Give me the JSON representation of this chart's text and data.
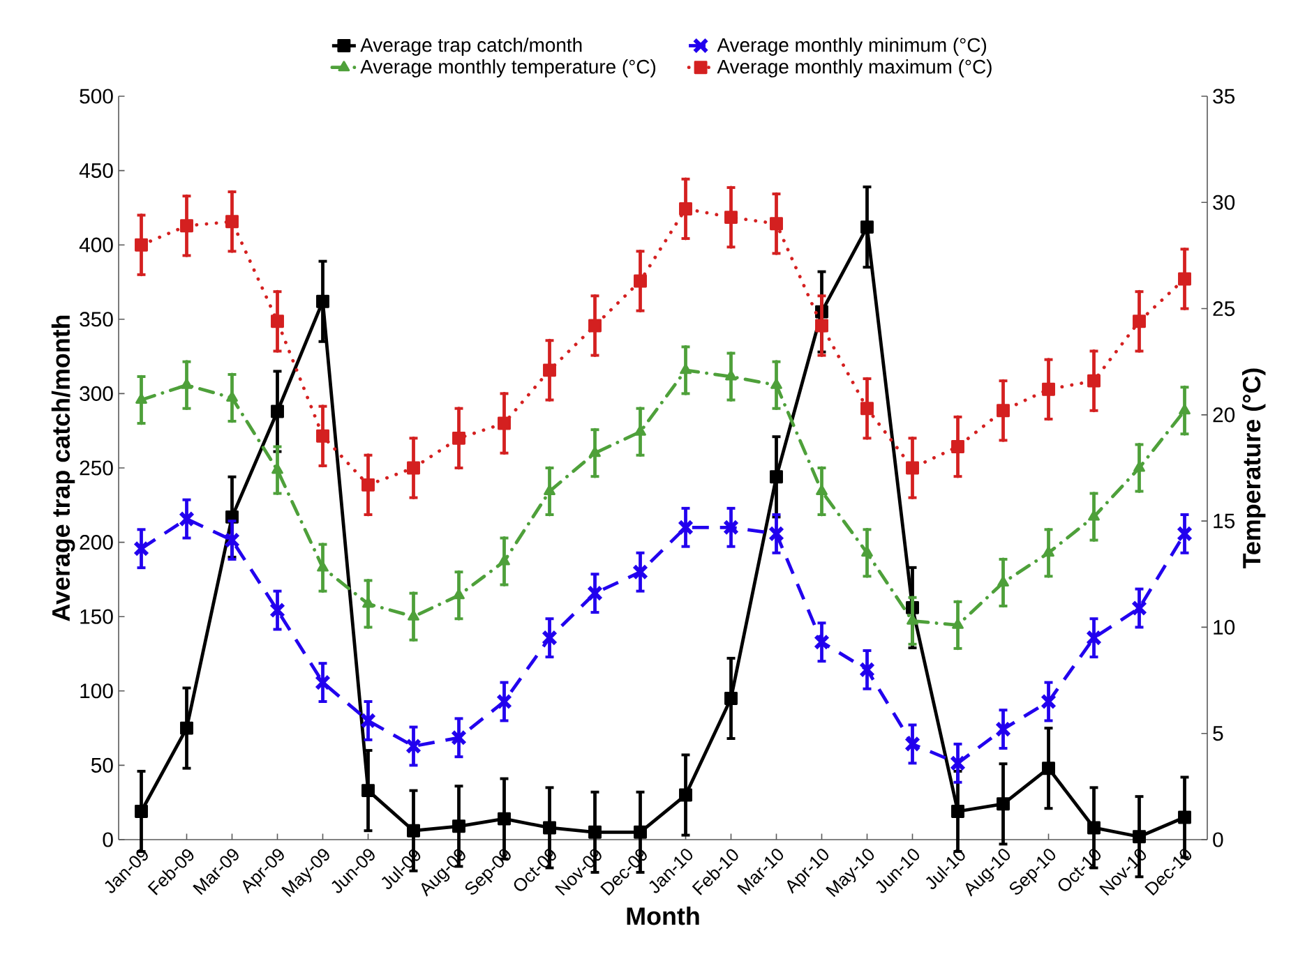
{
  "chart_data": {
    "type": "line",
    "categories": [
      "Jan-09",
      "Feb-09",
      "Mar-09",
      "Apr-09",
      "May-09",
      "Jun-09",
      "Jul-09",
      "Aug-09",
      "Sep-09",
      "Oct-09",
      "Nov-09",
      "Dec-09",
      "Jan-10",
      "Feb-10",
      "Mar-10",
      "Apr-10",
      "May-10",
      "Jun-10",
      "Jul-10",
      "Aug-10",
      "Sep-10",
      "Oct-10",
      "Nov-10",
      "Dec-10"
    ],
    "xlabel": "Month",
    "ylabel": "Average trap catch/month",
    "y2label": "Temperature (°C)",
    "ylim": [
      0,
      500
    ],
    "yticks": [
      0,
      50,
      100,
      150,
      200,
      250,
      300,
      350,
      400,
      450,
      500
    ],
    "y2lim": [
      0,
      35
    ],
    "y2ticks": [
      0,
      5,
      10,
      15,
      20,
      25,
      30,
      35
    ],
    "legend": "top",
    "series": [
      {
        "name": "Average trap catch/month",
        "color": "#000000",
        "marker": "square",
        "line_style": "solid",
        "values": [
          19,
          75,
          217,
          288,
          362,
          33,
          6,
          9,
          14,
          8,
          5,
          5,
          30,
          95,
          244,
          355,
          412,
          156,
          19,
          24,
          48,
          8,
          2,
          15
        ],
        "errors": [
          27,
          27,
          27,
          27,
          27,
          27,
          27,
          27,
          27,
          27,
          27,
          27,
          27,
          27,
          27,
          27,
          27,
          27,
          27,
          27,
          27,
          27,
          27,
          27
        ]
      },
      {
        "name": "Average monthly minimum (°C)",
        "color": "#2200ee",
        "marker": "cross",
        "line_style": "dashed",
        "axis": "y2",
        "values": [
          13.7,
          15.1,
          14.1,
          10.8,
          7.4,
          5.6,
          4.4,
          4.8,
          6.5,
          9.5,
          11.6,
          12.6,
          14.7,
          14.7,
          14.4,
          9.3,
          8.0,
          4.5,
          3.6,
          5.2,
          6.5,
          9.5,
          10.9,
          14.4
        ],
        "errors": [
          0.9,
          0.9,
          0.9,
          0.9,
          0.9,
          0.9,
          0.9,
          0.9,
          0.9,
          0.9,
          0.9,
          0.9,
          0.9,
          0.9,
          0.9,
          0.9,
          0.9,
          0.9,
          0.9,
          0.9,
          0.9,
          0.9,
          0.9,
          0.9
        ]
      },
      {
        "name": "Average monthly temperature (°C)",
        "color": "#4ea03a",
        "marker": "triangle",
        "line_style": "dashdot",
        "axis": "y2",
        "values": [
          20.7,
          21.4,
          20.8,
          17.4,
          12.8,
          11.1,
          10.5,
          11.5,
          13.1,
          16.4,
          18.2,
          19.2,
          22.1,
          21.8,
          21.4,
          16.4,
          13.5,
          10.3,
          10.1,
          12.1,
          13.5,
          15.2,
          17.5,
          20.2
        ],
        "errors": [
          1.1,
          1.1,
          1.1,
          1.1,
          1.1,
          1.1,
          1.1,
          1.1,
          1.1,
          1.1,
          1.1,
          1.1,
          1.1,
          1.1,
          1.1,
          1.1,
          1.1,
          1.1,
          1.1,
          1.1,
          1.1,
          1.1,
          1.1,
          1.1
        ]
      },
      {
        "name": "Average monthly maximum (°C)",
        "color": "#d42020",
        "marker": "square",
        "line_style": "dotted",
        "axis": "y2",
        "values": [
          28.0,
          28.9,
          29.1,
          24.4,
          19.0,
          16.7,
          17.5,
          18.9,
          19.6,
          22.1,
          24.2,
          26.3,
          29.7,
          29.3,
          29.0,
          24.2,
          20.3,
          17.5,
          18.5,
          20.2,
          21.2,
          21.6,
          24.4,
          26.4
        ],
        "errors": [
          1.4,
          1.4,
          1.4,
          1.4,
          1.4,
          1.4,
          1.4,
          1.4,
          1.4,
          1.4,
          1.4,
          1.4,
          1.4,
          1.4,
          1.4,
          1.4,
          1.4,
          1.4,
          1.4,
          1.4,
          1.4,
          1.4,
          1.4,
          1.4
        ]
      }
    ]
  }
}
